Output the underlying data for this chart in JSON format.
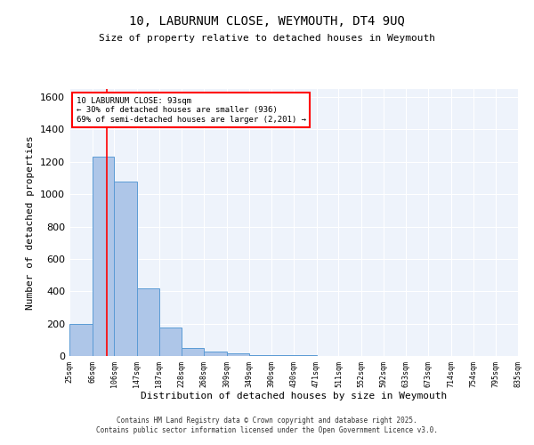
{
  "title1": "10, LABURNUM CLOSE, WEYMOUTH, DT4 9UQ",
  "title2": "Size of property relative to detached houses in Weymouth",
  "xlabel": "Distribution of detached houses by size in Weymouth",
  "ylabel": "Number of detached properties",
  "bin_edges": [
    25,
    66,
    106,
    147,
    187,
    228,
    268,
    309,
    349,
    390,
    430,
    471,
    511,
    552,
    592,
    633,
    673,
    714,
    754,
    795,
    835
  ],
  "bar_heights": [
    200,
    1230,
    1080,
    420,
    175,
    50,
    25,
    15,
    8,
    5,
    3,
    2,
    2,
    2,
    2,
    2,
    1,
    1,
    1,
    1
  ],
  "bar_color": "#aec6e8",
  "bar_edge_color": "#5b9bd5",
  "red_line_x": 93,
  "annotation_text": "10 LABURNUM CLOSE: 93sqm\n← 30% of detached houses are smaller (936)\n69% of semi-detached houses are larger (2,201) →",
  "annotation_box_color": "white",
  "annotation_box_edge_color": "red",
  "ylim": [
    0,
    1650
  ],
  "xlim": [
    25,
    835
  ],
  "yticks": [
    0,
    200,
    400,
    600,
    800,
    1000,
    1200,
    1400,
    1600
  ],
  "bg_color": "#eef3fb",
  "grid_color": "white",
  "footer_text": "Contains HM Land Registry data © Crown copyright and database right 2025.\nContains public sector information licensed under the Open Government Licence v3.0.",
  "tick_labels": [
    "25sqm",
    "66sqm",
    "106sqm",
    "147sqm",
    "187sqm",
    "228sqm",
    "268sqm",
    "309sqm",
    "349sqm",
    "390sqm",
    "430sqm",
    "471sqm",
    "511sqm",
    "552sqm",
    "592sqm",
    "633sqm",
    "673sqm",
    "714sqm",
    "754sqm",
    "795sqm",
    "835sqm"
  ]
}
